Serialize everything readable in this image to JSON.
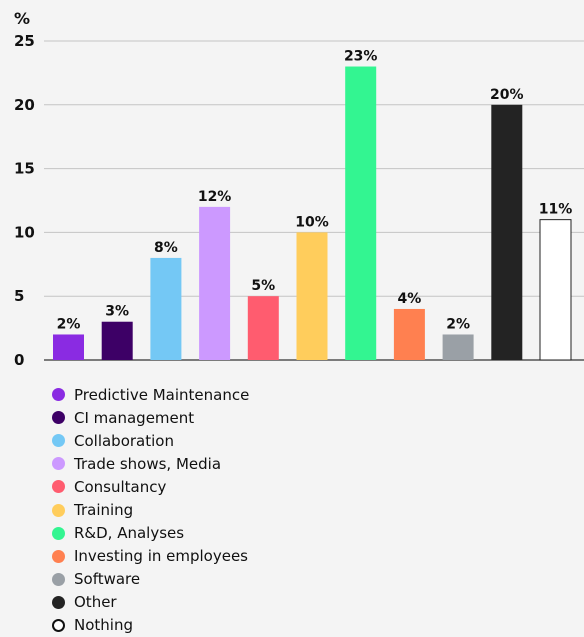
{
  "chart_data": {
    "type": "bar",
    "ylabel": "%",
    "ylim": [
      0,
      25
    ],
    "yticks": [
      "0",
      "5",
      "10",
      "15",
      "20",
      "25"
    ],
    "grid": true,
    "legend_position": "bottom",
    "categories": [
      "Predictive Maintenance",
      "CI management",
      "Collaboration",
      "Trade shows, Media",
      "Consultancy",
      "Training",
      "R&D, Analyses",
      "Investing in employees",
      "Software",
      "Other",
      "Nothing"
    ],
    "values": [
      2,
      3,
      8,
      12,
      5,
      10,
      23,
      4,
      2,
      20,
      11
    ],
    "data_labels": [
      "2%",
      "3%",
      "8%",
      "12%",
      "5%",
      "10%",
      "23%",
      "4%",
      "2%",
      "20%",
      "11%"
    ],
    "colors": [
      "#8a2be2",
      "#3d0066",
      "#74c8f5",
      "#cc99ff",
      "#ff5c6f",
      "#ffcd5c",
      "#33f591",
      "#ff8050",
      "#9aa0a6",
      "#232323",
      "#ffffff"
    ]
  }
}
